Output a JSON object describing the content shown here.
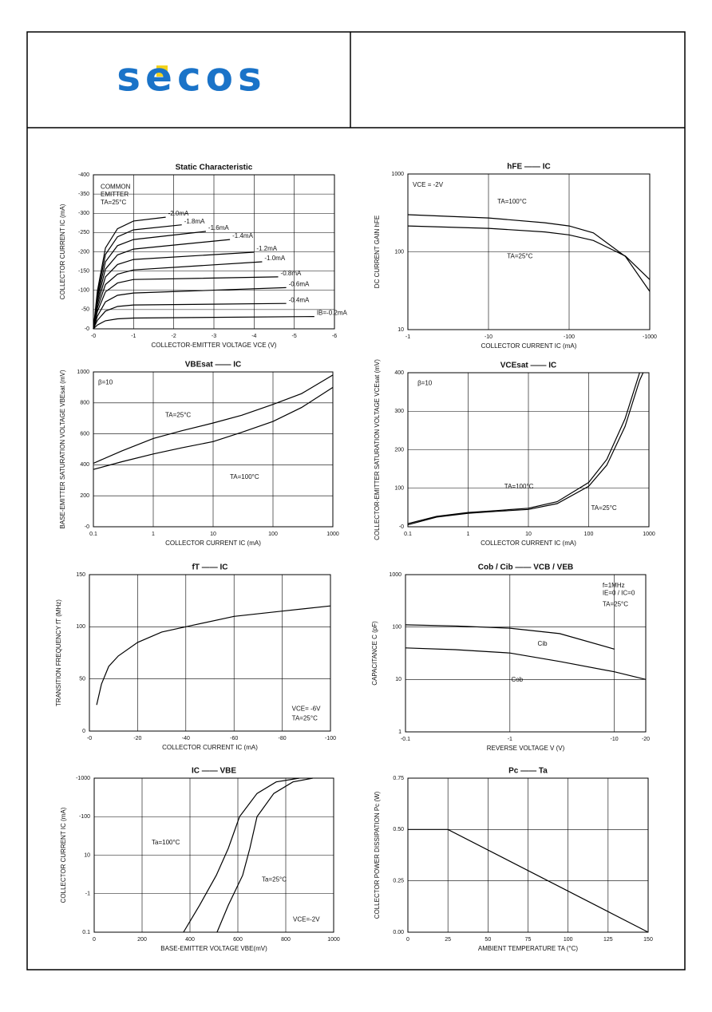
{
  "header": {
    "logo": "secos"
  },
  "chart_data": [
    {
      "type": "line",
      "title": "Static Characteristic",
      "xlabel": "COLLECTOR-EMITTER VOLTAGE VCE (V)",
      "ylabel": "COLLECTOR CURRENT IC (mA)",
      "xlim": [
        0,
        -6
      ],
      "ylim": [
        0,
        -400
      ],
      "xlog": false,
      "ylog": false,
      "xticks": [
        {
          "value": 0,
          "label": "-0"
        },
        -1,
        -2,
        -3,
        -4,
        -5,
        -6
      ],
      "yticks": [
        {
          "value": 0,
          "label": "-0"
        },
        -50,
        -100,
        -150,
        -200,
        -250,
        -300,
        -350,
        -400
      ],
      "annotations": [
        "COMMON",
        "EMITTER",
        "TA=25°C"
      ],
      "series": [
        {
          "name": "IB=-0.2mA",
          "color": "#000",
          "x": [
            0,
            -0.1,
            -0.3,
            -0.6,
            -1,
            -5.5
          ],
          "values": [
            0,
            -10,
            -21,
            -26,
            -28,
            -32
          ]
        },
        {
          "name": "-0.4mA",
          "color": "#000",
          "x": [
            0,
            -0.1,
            -0.3,
            -0.6,
            -1,
            -4.8
          ],
          "values": [
            0,
            -22,
            -46,
            -58,
            -62,
            -66
          ]
        },
        {
          "name": "-0.6mA",
          "color": "#000",
          "x": [
            0,
            -0.1,
            -0.3,
            -0.6,
            -1,
            -4.8
          ],
          "values": [
            0,
            -33,
            -70,
            -87,
            -93,
            -107
          ]
        },
        {
          "name": "-0.8mA",
          "color": "#000",
          "x": [
            0,
            -0.1,
            -0.3,
            -0.6,
            -1,
            -4.6
          ],
          "values": [
            0,
            -45,
            -96,
            -119,
            -128,
            -135
          ]
        },
        {
          "name": "-1.0mA",
          "color": "#000",
          "x": [
            0,
            -0.1,
            -0.3,
            -0.6,
            -1,
            -4.2
          ],
          "values": [
            0,
            -54,
            -115,
            -142,
            -153,
            -174
          ]
        },
        {
          "name": "-1.2mA",
          "color": "#000",
          "x": [
            0,
            -0.1,
            -0.3,
            -0.6,
            -1,
            -4
          ],
          "values": [
            0,
            -63,
            -135,
            -167,
            -180,
            -199
          ]
        },
        {
          "name": "-1.4mA",
          "color": "#000",
          "x": [
            0,
            -0.1,
            -0.3,
            -0.6,
            -1,
            -3.4
          ],
          "values": [
            0,
            -72,
            -155,
            -192,
            -207,
            -232
          ]
        },
        {
          "name": "-1.6mA",
          "color": "#000",
          "x": [
            0,
            -0.1,
            -0.3,
            -0.6,
            -1,
            -2.8
          ],
          "values": [
            0,
            -81,
            -174,
            -216,
            -232,
            -253
          ]
        },
        {
          "name": "-1.8mA",
          "color": "#000",
          "x": [
            0,
            -0.1,
            -0.3,
            -0.6,
            -1,
            -2.2
          ],
          "values": [
            0,
            -90,
            -193,
            -239,
            -257,
            -270
          ]
        },
        {
          "name": "-2.0mA",
          "color": "#000",
          "x": [
            0,
            -0.1,
            -0.3,
            -0.6,
            -1,
            -1.8
          ],
          "values": [
            0,
            -98,
            -210,
            -260,
            -280,
            -290
          ]
        }
      ]
    },
    {
      "type": "line",
      "title": "hFE —— IC",
      "xlabel": "COLLECTOR CURRENT IC (mA)",
      "ylabel": "DC CURRENT GAIN hFE",
      "xlim": [
        -1,
        -1000
      ],
      "ylim": [
        10,
        1000
      ],
      "xlog": true,
      "ylog": true,
      "xticks": [
        -1,
        -10,
        -100,
        -1000
      ],
      "yticks": [
        10,
        100,
        1000
      ],
      "annotations": [
        "VCE = -2V",
        "TA=100°C",
        "TA=25°C"
      ],
      "series": [
        {
          "color": "#000",
          "x": [
            -1,
            -10,
            -50,
            -100,
            -200,
            -500,
            -1000
          ],
          "values": [
            300,
            272,
            236,
            215,
            175,
            87,
            31
          ]
        },
        {
          "color": "#000",
          "x": [
            -1,
            -10,
            -50,
            -100,
            -200,
            -500,
            -1000
          ],
          "values": [
            215,
            200,
            180,
            165,
            140,
            88,
            44
          ]
        }
      ]
    },
    {
      "type": "line",
      "title": "VBEsat —— IC",
      "xlabel": "COLLECTOR CURRENT IC (mA)",
      "ylabel": "BASE-EMITTER SATURATION VOLTAGE VBEsat (mV)",
      "xlim": [
        0.1,
        1000
      ],
      "ylim": [
        0,
        1000
      ],
      "xlog": true,
      "ylog": false,
      "xticks": [
        0.1,
        1,
        10,
        100,
        1000
      ],
      "yticks": [
        {
          "value": 0,
          "label": "-0"
        },
        200,
        400,
        600,
        800,
        1000
      ],
      "annotations": [
        "β=10",
        "TA=25°C",
        "TA=100°C"
      ],
      "series": [
        {
          "color": "#000",
          "x": [
            0.1,
            0.3,
            1,
            3,
            10,
            30,
            100,
            300,
            1000
          ],
          "values": [
            410,
            490,
            570,
            620,
            670,
            720,
            790,
            860,
            980
          ]
        },
        {
          "color": "#000",
          "x": [
            0.1,
            0.3,
            1,
            3,
            10,
            30,
            100,
            300,
            1000
          ],
          "values": [
            370,
            420,
            470,
            510,
            550,
            610,
            680,
            770,
            900
          ]
        }
      ]
    },
    {
      "type": "line",
      "title": "VCEsat —— IC",
      "xlabel": "COLLECTOR CURRENT IC (mA)",
      "ylabel": "COLLECTOR-EMITTER SATURATION VOLTAGE VCEsat (mV)",
      "xlim": [
        0.1,
        1000
      ],
      "ylim": [
        0,
        400
      ],
      "xlog": true,
      "ylog": false,
      "xticks": [
        0.1,
        1,
        10,
        100,
        1000
      ],
      "yticks": [
        {
          "value": 0,
          "label": "-0"
        },
        100,
        200,
        300,
        400
      ],
      "annotations": [
        "β=10",
        "TA=100°C",
        "TA=25°C"
      ],
      "series": [
        {
          "color": "#000",
          "x": [
            0.1,
            0.3,
            1,
            3,
            10,
            30,
            100,
            200,
            400,
            700,
            800
          ],
          "values": [
            5,
            25,
            35,
            40,
            45,
            60,
            105,
            160,
            260,
            380,
            400
          ]
        },
        {
          "color": "#000",
          "x": [
            0.1,
            0.3,
            1,
            3,
            10,
            30,
            100,
            200,
            400,
            700
          ],
          "values": [
            8,
            27,
            37,
            42,
            48,
            65,
            115,
            175,
            280,
            400
          ]
        }
      ]
    },
    {
      "type": "line",
      "title": "fT —— IC",
      "xlabel": "COLLECTOR CURRENT IC (mA)",
      "ylabel": "TRANSITION FREQUENCY fT (MHz)",
      "xlim": [
        0,
        -100
      ],
      "ylim": [
        0,
        150
      ],
      "xlog": false,
      "ylog": false,
      "xticks": [
        {
          "value": 0,
          "label": "-0"
        },
        -20,
        -40,
        -60,
        -80,
        -100
      ],
      "yticks": [
        0,
        50,
        100,
        150
      ],
      "annotations": [
        "VCE= -6V",
        "TA=25°C"
      ],
      "series": [
        {
          "color": "#000",
          "x": [
            -3,
            -5,
            -8,
            -12,
            -20,
            -30,
            -40,
            -60,
            -80,
            -100
          ],
          "values": [
            25,
            45,
            62,
            72,
            85,
            95,
            100,
            110,
            115,
            120
          ]
        }
      ]
    },
    {
      "type": "line",
      "title": "Cob / Cib —— VCB / VEB",
      "xlabel": "REVERSE VOLTAGE V (V)",
      "ylabel": "CAPACITANCE C (pF)",
      "xlim": [
        -0.1,
        -20
      ],
      "ylim": [
        1,
        1000
      ],
      "xlog": true,
      "ylog": true,
      "xticks": [
        -0.1,
        -1,
        -10,
        -20
      ],
      "yticks": [
        1,
        10,
        100,
        1000
      ],
      "annotations": [
        "f=1MHz",
        "IE=0 / IC=0",
        "TA=25°C",
        "Cib",
        "Cob"
      ],
      "series": [
        {
          "color": "#000",
          "x": [
            -0.1,
            -0.3,
            -1,
            -3,
            -10
          ],
          "values": [
            110,
            105,
            95,
            75,
            38
          ]
        },
        {
          "color": "#000",
          "x": [
            -0.1,
            -0.3,
            -1,
            -3,
            -10,
            -20
          ],
          "values": [
            40,
            37,
            32,
            22,
            14,
            10
          ]
        }
      ]
    },
    {
      "type": "line",
      "title": "IC —— VBE",
      "xlabel": "BASE-EMITTER VOLTAGE VBE(mV)",
      "ylabel": "COLLECTOR CURRENT IC (mA)",
      "xlim": [
        0,
        1000
      ],
      "ylim": [
        -0.1,
        -1000
      ],
      "xlog": false,
      "ylog": true,
      "xticks": [
        0,
        200,
        400,
        600,
        800,
        1000
      ],
      "yticks": [
        {
          "value": -0.1,
          "label": "0.1"
        },
        -1,
        {
          "value": -10,
          "label": "10"
        },
        -100,
        -1000
      ],
      "annotations": [
        "Ta=100°C",
        "Ta=25°C",
        "VCE=-2V"
      ],
      "series": [
        {
          "color": "#000",
          "x": [
            373,
            440,
            510,
            560,
            607,
            680,
            760,
            857
          ],
          "values": [
            -0.1,
            -0.5,
            -3,
            -15,
            -100,
            -400,
            -800,
            -1000
          ]
        },
        {
          "color": "#000",
          "x": [
            513,
            560,
            620,
            650,
            680,
            750,
            830,
            913
          ],
          "values": [
            -0.1,
            -0.5,
            -3,
            -15,
            -100,
            -400,
            -800,
            -1000
          ]
        }
      ]
    },
    {
      "type": "line",
      "title": "Pc —— Ta",
      "xlabel": "AMBIENT TEMPERATURE TA (°C)",
      "ylabel": "COLLECTOR POWER DISSIPATION Pc (W)",
      "xlim": [
        0,
        150
      ],
      "ylim": [
        0,
        0.75
      ],
      "xlog": false,
      "ylog": false,
      "xticks": [
        0,
        25,
        50,
        75,
        100,
        125,
        150
      ],
      "yticks": [
        {
          "value": 0,
          "label": "0.00"
        },
        0.25,
        {
          "value": 0.5,
          "label": "0.50"
        },
        0.75
      ],
      "annotations": [],
      "series": [
        {
          "color": "#000",
          "x": [
            0,
            25,
            150
          ],
          "values": [
            0.5,
            0.5,
            0
          ]
        }
      ]
    }
  ]
}
